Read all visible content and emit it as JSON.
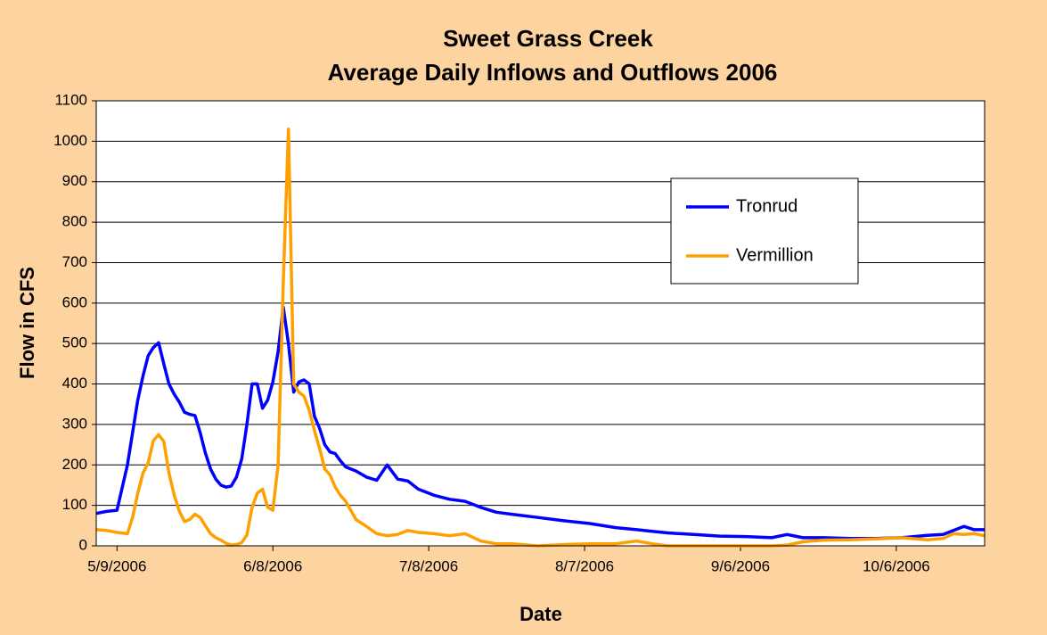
{
  "chart_data": {
    "type": "line",
    "title": "Sweet Grass Creek",
    "subtitle": "Average Daily Inflows and Outflows 2006",
    "x_label": "Date",
    "y_label": "Flow in CFS",
    "x": [
      "5/5/2006",
      "5/7/2006",
      "5/9/2006",
      "5/11/2006",
      "5/12/2006",
      "5/13/2006",
      "5/14/2006",
      "5/15/2006",
      "5/16/2006",
      "5/17/2006",
      "5/18/2006",
      "5/19/2006",
      "5/20/2006",
      "5/21/2006",
      "5/22/2006",
      "5/23/2006",
      "5/24/2006",
      "5/25/2006",
      "5/26/2006",
      "5/27/2006",
      "5/28/2006",
      "5/29/2006",
      "5/30/2006",
      "5/31/2006",
      "6/1/2006",
      "6/2/2006",
      "6/3/2006",
      "6/4/2006",
      "6/5/2006",
      "6/6/2006",
      "6/7/2006",
      "6/8/2006",
      "6/9/2006",
      "6/10/2006",
      "6/11/2006",
      "6/12/2006",
      "6/13/2006",
      "6/14/2006",
      "6/15/2006",
      "6/16/2006",
      "6/17/2006",
      "6/18/2006",
      "6/19/2006",
      "6/20/2006",
      "6/21/2006",
      "6/22/2006",
      "6/24/2006",
      "6/26/2006",
      "6/28/2006",
      "6/30/2006",
      "7/2/2006",
      "7/4/2006",
      "7/6/2006",
      "7/9/2006",
      "7/12/2006",
      "7/15/2006",
      "7/18/2006",
      "7/21/2006",
      "7/24/2006",
      "7/29/2006",
      "8/3/2006",
      "8/8/2006",
      "8/13/2006",
      "8/17/2006",
      "8/20/2006",
      "8/23/2006",
      "8/28/2006",
      "9/2/2006",
      "9/7/2006",
      "9/12/2006",
      "9/15/2006",
      "9/18/2006",
      "9/22/2006",
      "9/27/2006",
      "10/2/2006",
      "10/7/2006",
      "10/12/2006",
      "10/15/2006",
      "10/17/2006",
      "10/19/2006",
      "10/21/2006",
      "10/23/2006"
    ],
    "series": [
      {
        "name": "Tronrud",
        "color": "#0000ff",
        "values": [
          80,
          85,
          88,
          200,
          280,
          360,
          420,
          470,
          490,
          502,
          450,
          400,
          375,
          355,
          330,
          325,
          322,
          280,
          230,
          190,
          165,
          150,
          145,
          148,
          170,
          215,
          300,
          400,
          400,
          340,
          360,
          405,
          480,
          590,
          500,
          380,
          405,
          410,
          400,
          320,
          290,
          250,
          232,
          228,
          210,
          195,
          185,
          170,
          162,
          200,
          165,
          160,
          140,
          125,
          115,
          110,
          95,
          83,
          78,
          70,
          62,
          55,
          45,
          40,
          36,
          32,
          28,
          24,
          23,
          20,
          28,
          20,
          20,
          18,
          18,
          20,
          26,
          28,
          38,
          48,
          40,
          40
        ]
      },
      {
        "name": "Vermillion",
        "color": "#ffa000",
        "values": [
          40,
          38,
          33,
          30,
          70,
          130,
          180,
          205,
          260,
          275,
          258,
          180,
          125,
          85,
          60,
          65,
          78,
          70,
          50,
          30,
          20,
          14,
          6,
          2,
          3,
          8,
          27,
          95,
          130,
          140,
          95,
          88,
          200,
          650,
          1030,
          400,
          380,
          370,
          335,
          285,
          240,
          190,
          175,
          145,
          125,
          110,
          65,
          48,
          30,
          25,
          28,
          38,
          33,
          30,
          25,
          30,
          12,
          5,
          5,
          0,
          3,
          5,
          5,
          12,
          5,
          0,
          0,
          0,
          0,
          0,
          2,
          10,
          14,
          15,
          17,
          20,
          15,
          18,
          30,
          28,
          30,
          25
        ]
      }
    ],
    "xlim": [
      "5/5/2006",
      "10/23/2006"
    ],
    "xticks": [
      "5/9/2006",
      "6/8/2006",
      "7/8/2006",
      "8/7/2006",
      "9/6/2006",
      "10/6/2006"
    ],
    "ylim": [
      0,
      1100
    ],
    "yticks": [
      0,
      100,
      200,
      300,
      400,
      500,
      600,
      700,
      800,
      900,
      1000,
      1100
    ],
    "grid": true,
    "legend": "upper right"
  }
}
